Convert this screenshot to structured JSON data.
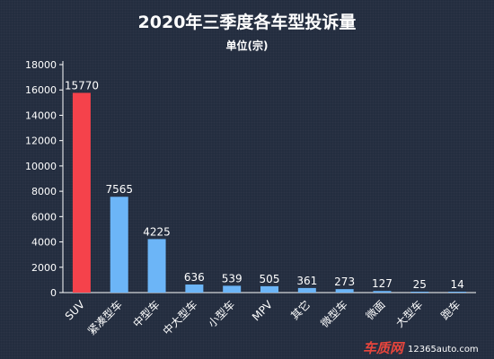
{
  "chart_data": {
    "type": "bar",
    "title": "2020年三季度各车型投诉量",
    "subtitle": "单位(宗)",
    "categories": [
      "SUV",
      "紧凑型车",
      "中型车",
      "中大型车",
      "小型车",
      "MPV",
      "其它",
      "微型车",
      "微面",
      "大型车",
      "跑车"
    ],
    "values": [
      15770,
      7565,
      4225,
      636,
      539,
      505,
      361,
      273,
      127,
      25,
      14
    ],
    "value_labels": [
      "15770",
      "7565",
      "4225",
      "636",
      "539",
      "505",
      "361",
      "273",
      "127",
      "25",
      "14"
    ],
    "ylim": [
      0,
      18000
    ],
    "yticks": [
      0,
      2000,
      4000,
      6000,
      8000,
      10000,
      12000,
      14000,
      16000,
      18000
    ],
    "ytick_labels": [
      "0",
      "2000",
      "4000",
      "6000",
      "8000",
      "10000",
      "12000",
      "14000",
      "16000",
      "18000"
    ],
    "xlabel": "",
    "ylabel": "",
    "grid": false,
    "highlight_index": 0,
    "colors": {
      "highlight": "#f5424b",
      "bar": "#6cb5f7",
      "axis": "#ffffff",
      "background": "#232d3f"
    }
  },
  "watermark": {
    "brand": "车质网",
    "site": "12365auto.com"
  }
}
